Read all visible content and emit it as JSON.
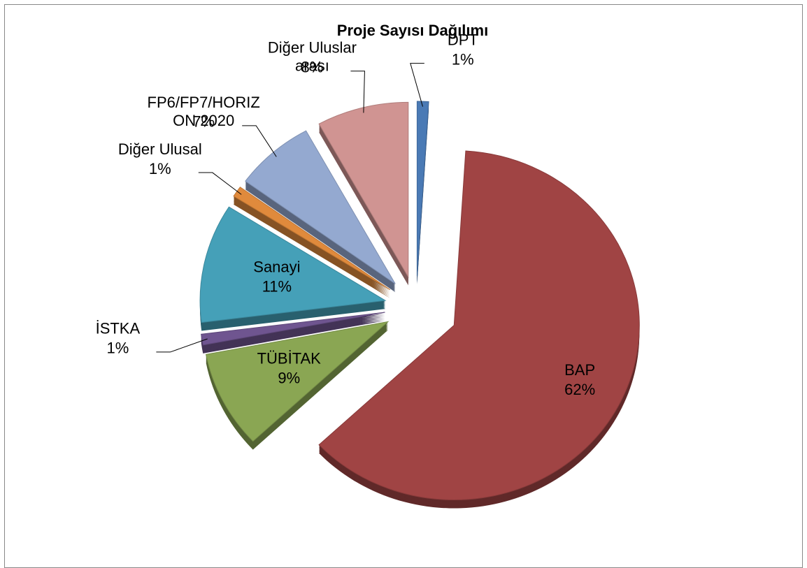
{
  "chart_data": {
    "type": "pie",
    "title": "Proje Sayısı Dağılımı",
    "categories": [
      "DPT",
      "BAP",
      "TÜBİTAK",
      "İSTKA",
      "Sanayi",
      "Diğer Ulusal",
      "FP6/FP7/HORIZON 2020",
      "Diğer Uluslararası"
    ],
    "values": [
      1,
      62,
      9,
      1,
      11,
      1,
      7,
      8
    ],
    "value_labels": [
      "1%",
      "62%",
      "9%",
      "1%",
      "11%",
      "1%",
      "7%",
      "8%"
    ],
    "colors": [
      "#4a7ab5",
      "#a04444",
      "#8aa653",
      "#6f5590",
      "#45a0b8",
      "#e08a3c",
      "#94a9d0",
      "#d09492"
    ]
  }
}
